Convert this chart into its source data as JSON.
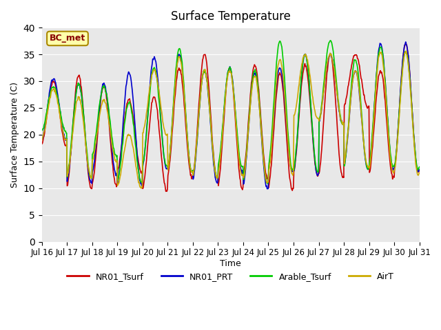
{
  "title": "Surface Temperature",
  "ylabel": "Surface Temperature (C)",
  "xlabel": "Time",
  "ylim": [
    0,
    40
  ],
  "yticks": [
    0,
    5,
    10,
    15,
    20,
    25,
    30,
    35,
    40
  ],
  "annotation": "BC_met",
  "background_color": "#e8e8e8",
  "line_colors": {
    "NR01_Tsurf": "#cc0000",
    "NR01_PRT": "#0000cc",
    "Arable_Tsurf": "#00cc00",
    "AirT": "#ccaa00"
  },
  "legend_labels": [
    "NR01_Tsurf",
    "NR01_PRT",
    "Arable_Tsurf",
    "AirT"
  ],
  "x_tick_labels": [
    "Jul 16",
    "Jul 17",
    "Jul 18",
    "Jul 19",
    "Jul 20",
    "Jul 21",
    "Jul 22",
    "Jul 23",
    "Jul 24",
    "Jul 25",
    "Jul 26",
    "Jul 27",
    "Jul 28",
    "Jul 29",
    "Jul 30",
    "Jul 31"
  ],
  "num_days": 15,
  "points_per_day": 48,
  "daily_peaks": {
    "NR01_Tsurf": [
      18,
      30,
      10,
      31,
      10.5,
      29,
      13,
      26.5,
      9.5,
      27,
      12,
      32.5,
      12,
      35,
      10,
      32.5,
      12,
      33,
      9.5,
      31.5,
      12.5,
      33,
      12,
      35,
      25,
      35,
      12,
      32,
      13,
      37
    ],
    "NR01_PRT": [
      19,
      30.5,
      11,
      29.5,
      12.5,
      29.5,
      10.5,
      31.5,
      13.5,
      34.5,
      13,
      35,
      11,
      32,
      13,
      32.5,
      10,
      31.5,
      13,
      32.5,
      12.5,
      35,
      22,
      35,
      13.5,
      32,
      13.5,
      37,
      13,
      37
    ],
    "Arable_Tsurf": [
      20.5,
      29,
      12,
      29.5,
      16,
      29,
      11,
      26,
      14,
      32.5,
      13,
      36,
      12,
      32,
      14,
      32.5,
      11,
      32,
      13.5,
      37.5,
      13,
      35,
      22,
      37.5,
      13.5,
      34,
      14,
      36.5,
      13.5,
      35.5
    ],
    "AirT": [
      19,
      28.5,
      12,
      27,
      15,
      26.5,
      10,
      20,
      20,
      32,
      13,
      34.5,
      12,
      32,
      12.5,
      32,
      11,
      31,
      12.5,
      34,
      23,
      35,
      22,
      35,
      14,
      32,
      13,
      35.5,
      12.5,
      35.5
    ]
  },
  "linewidth": 1.2
}
